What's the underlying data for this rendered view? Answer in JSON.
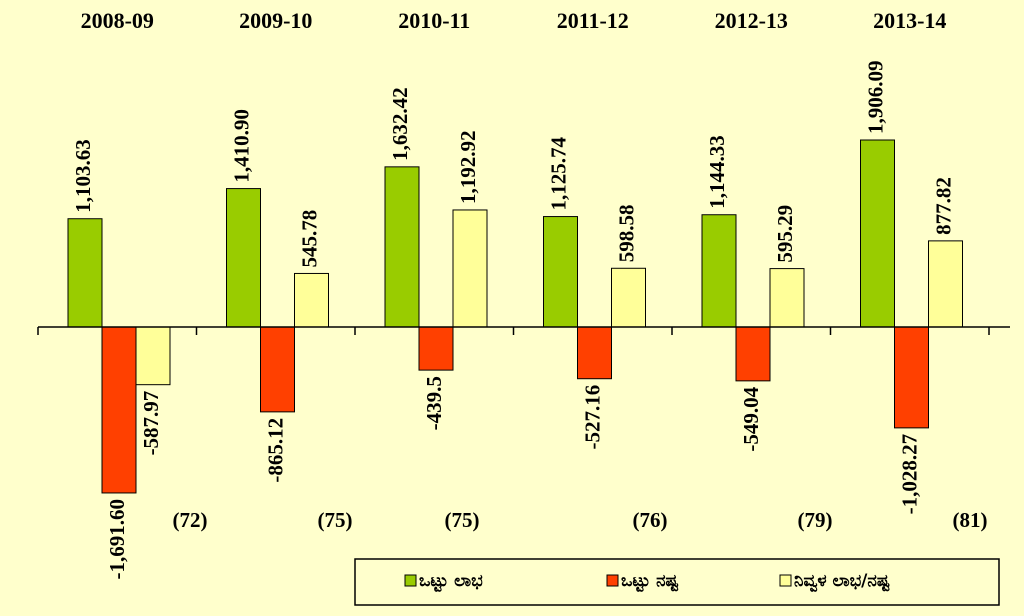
{
  "chart_data": {
    "type": "bar",
    "categories": [
      "2008-09",
      "2009-10",
      "2010-11",
      "2011-12",
      "2012-13",
      "2013-14"
    ],
    "series": [
      {
        "name": "ಒಟ್ಟು ಲಾಭ",
        "color": "#99cc00",
        "values": [
          1103.63,
          1410.9,
          1632.42,
          1125.74,
          1144.33,
          1906.09
        ],
        "value_labels": [
          "1,103.63",
          "1,410.90",
          "1,632.42",
          "1,125.74",
          "1,144.33",
          "1,906.09"
        ]
      },
      {
        "name": "ಒಟ್ಟು ನಷ್ಟ",
        "color": "#ff4000",
        "values": [
          -1691.6,
          -865.12,
          -439.5,
          -527.16,
          -549.04,
          -1028.27
        ],
        "value_labels": [
          "-1,691.60",
          "-865.12",
          "-439.5",
          "-527.16",
          "-549.04",
          "-1,028.27"
        ]
      },
      {
        "name": "ನಿವ್ವಳ ಲಾಭ/ನಷ್ಟ",
        "color": "#ffff99",
        "values": [
          -587.97,
          545.78,
          1192.92,
          598.58,
          595.29,
          877.82
        ],
        "value_labels": [
          "-587.97",
          "545.78",
          "1,192.92",
          "598.58",
          "595.29",
          "877.82"
        ]
      }
    ],
    "annotations": [
      "(72)",
      "(75)",
      "(75)",
      "(76)",
      "(79)",
      "(81)"
    ],
    "legend": "bottom-right"
  }
}
